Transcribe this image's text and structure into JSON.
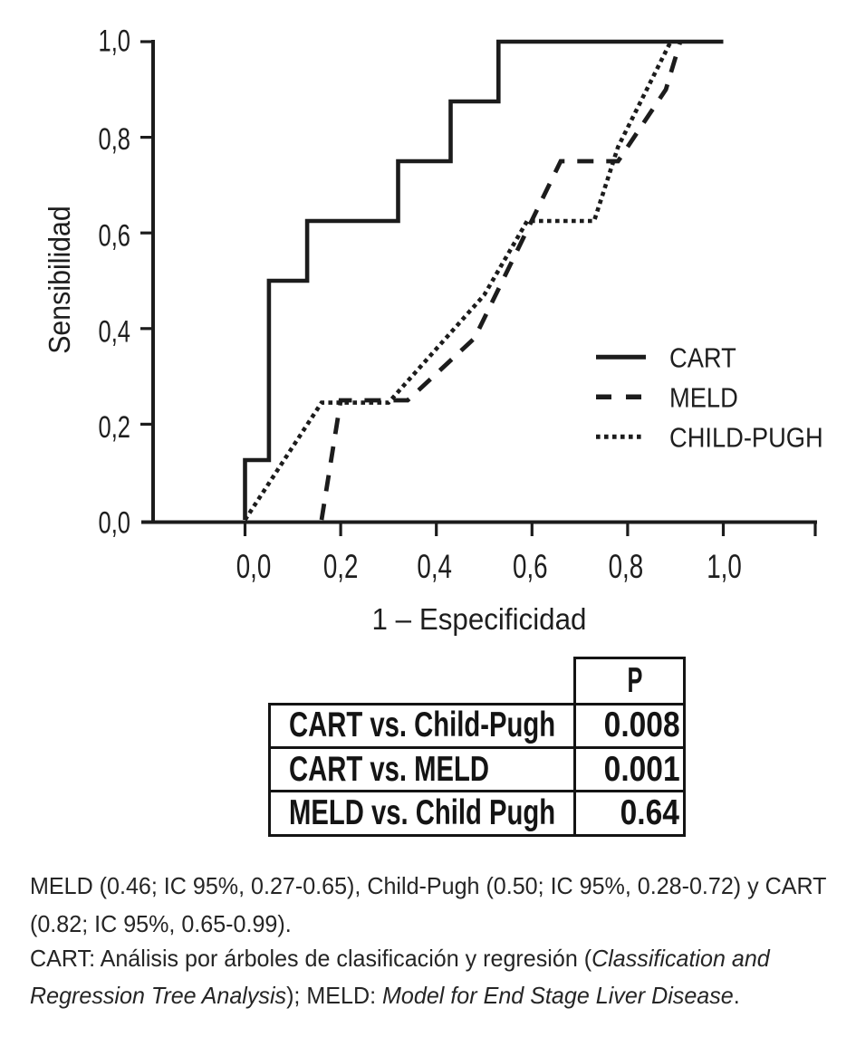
{
  "page": {
    "background": "#ffffff",
    "ink": "#1c1c1c"
  },
  "chart_data": {
    "type": "line",
    "variant": "roc-curves",
    "title": "",
    "xlabel": "1 – Especificidad",
    "ylabel": "Sensibilidad",
    "xlim": [
      0,
      1
    ],
    "ylim": [
      0,
      1
    ],
    "grid": false,
    "x_tick_values": [
      0,
      0.2,
      0.4,
      0.6,
      0.8,
      1.0
    ],
    "x_tick_labels": [
      "0,0",
      "0,2",
      "0,4",
      "0,6",
      "0,8",
      "1,0"
    ],
    "y_tick_values": [
      0,
      0.2,
      0.4,
      0.6,
      0.8,
      1.0
    ],
    "y_tick_labels": [
      "0,0",
      "0,2",
      "0,4",
      "0,6",
      "0,8",
      "1,0"
    ],
    "legend": {
      "position": "right-middle",
      "entries": [
        {
          "label": "CART",
          "line_style": "solid"
        },
        {
          "label": "MELD",
          "line_style": "dashed"
        },
        {
          "label": "CHILD-PUGH",
          "line_style": "dotted"
        }
      ]
    },
    "series": [
      {
        "name": "CART",
        "line_style": "solid",
        "points": [
          [
            0,
            0
          ],
          [
            0,
            0.125
          ],
          [
            0.05,
            0.125
          ],
          [
            0.05,
            0.5
          ],
          [
            0.13,
            0.5
          ],
          [
            0.13,
            0.625
          ],
          [
            0.32,
            0.625
          ],
          [
            0.32,
            0.75
          ],
          [
            0.43,
            0.75
          ],
          [
            0.43,
            0.875
          ],
          [
            0.53,
            0.875
          ],
          [
            0.53,
            1
          ],
          [
            1,
            1
          ]
        ]
      },
      {
        "name": "MELD",
        "line_style": "dashed",
        "points": [
          [
            0.16,
            0
          ],
          [
            0.2,
            0.25
          ],
          [
            0.34,
            0.25
          ],
          [
            0.48,
            0.38
          ],
          [
            0.66,
            0.75
          ],
          [
            0.78,
            0.75
          ],
          [
            0.88,
            0.9
          ],
          [
            0.91,
            1
          ]
        ]
      },
      {
        "name": "CHILD-PUGH",
        "line_style": "dotted",
        "points": [
          [
            0,
            0
          ],
          [
            0.16,
            0.245
          ],
          [
            0.3,
            0.245
          ],
          [
            0.5,
            0.47
          ],
          [
            0.59,
            0.625
          ],
          [
            0.73,
            0.625
          ],
          [
            0.78,
            0.78
          ],
          [
            0.89,
            1
          ]
        ]
      }
    ]
  },
  "comparison_table": {
    "p_header": "P",
    "rows": [
      {
        "label": "CART vs. Child-Pugh",
        "p_value": "0.008"
      },
      {
        "label": "CART vs. MELD",
        "p_value": "0.001"
      },
      {
        "label": "MELD vs. Child Pugh",
        "p_value": "0.64"
      }
    ]
  },
  "caption": {
    "lines": [
      [
        {
          "t": "MELD (0.46; IC 95%, 0.27-0.65), Child-Pugh (0.50; IC 95%, 0.28-0.72) y CART"
        }
      ],
      [
        {
          "t": "(0.82; IC 95%, 0.65-0.99)."
        }
      ],
      [
        {
          "t": "CART: Análisis por árboles de clasificación y regresión ("
        },
        {
          "t": "Classification and",
          "i": true
        }
      ],
      [
        {
          "t": "Regression Tree Analysis",
          "i": true
        },
        {
          "t": "); MELD: "
        },
        {
          "t": "Model for End Stage Liver Disease",
          "i": true
        },
        {
          "t": "."
        }
      ]
    ]
  }
}
